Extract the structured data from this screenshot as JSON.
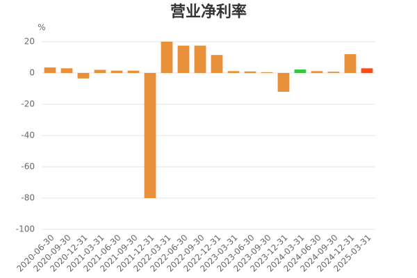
{
  "chart_data": {
    "type": "bar",
    "title": "营业净利率",
    "y_unit": "%",
    "categories": [
      "2020-06-30",
      "2020-09-30",
      "2020-12-31",
      "2021-03-31",
      "2021-06-30",
      "2021-09-30",
      "2021-12-31",
      "2022-03-31",
      "2022-06-30",
      "2022-09-30",
      "2022-12-31",
      "2023-03-31",
      "2023-06-30",
      "2023-09-30",
      "2023-12-31",
      "2024-03-31",
      "2024-06-30",
      "2024-09-30",
      "2024-12-31",
      "2025-03-31"
    ],
    "values": [
      3.5,
      3,
      -3.5,
      2,
      1.5,
      1.5,
      -80,
      20,
      17.5,
      17.5,
      11.5,
      1.2,
      1,
      0.5,
      -12,
      2.2,
      1.2,
      0.8,
      12,
      3
    ],
    "colors": [
      "#e8913a",
      "#e8913a",
      "#e8913a",
      "#e8913a",
      "#e8913a",
      "#e8913a",
      "#e8913a",
      "#e8913a",
      "#e8913a",
      "#e8913a",
      "#e8913a",
      "#e8913a",
      "#e8913a",
      "#e8913a",
      "#e8913a",
      "#33c53f",
      "#e8913a",
      "#e8913a",
      "#e8913a",
      "#f5501e"
    ],
    "ylim": [
      -100,
      20
    ],
    "yticks": [
      20,
      0,
      -20,
      -40,
      -60,
      -80,
      -100
    ],
    "grid": true
  }
}
